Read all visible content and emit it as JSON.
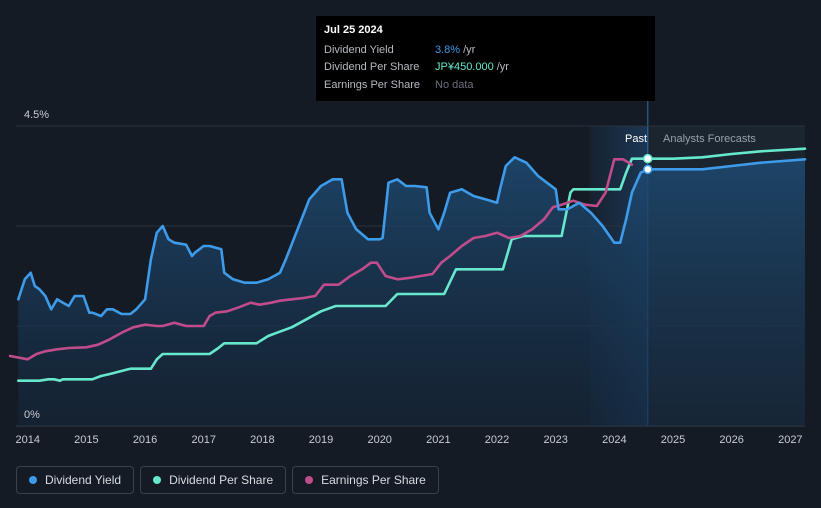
{
  "tooltip": {
    "date": "Jul 25 2024",
    "rows": [
      {
        "label": "Dividend Yield",
        "value": "3.8%",
        "unit": "/yr"
      },
      {
        "label": "Dividend Per Share",
        "value": "JP¥450.000",
        "unit": "/yr"
      },
      {
        "label": "Earnings Per Share",
        "value": "No data",
        "unit": ""
      }
    ]
  },
  "legend": [
    {
      "label": "Dividend Yield",
      "color": "#3d9be9"
    },
    {
      "label": "Dividend Per Share",
      "color": "#67e8cc"
    },
    {
      "label": "Earnings Per Share",
      "color": "#c04c8c"
    }
  ],
  "colors": {
    "background": "#151b24",
    "forecast_band": "#1b2530",
    "past_band": "#1c3a5a"
  },
  "chart_data": {
    "type": "line",
    "ylim": [
      0,
      4.5
    ],
    "y_ticks": [
      {
        "value": 4.5,
        "label": "4.5%"
      },
      {
        "value": 0,
        "label": "0%"
      }
    ],
    "x_ticks": [
      "2014",
      "2015",
      "2016",
      "2017",
      "2018",
      "2019",
      "2020",
      "2021",
      "2022",
      "2023",
      "2024",
      "2025",
      "2026",
      "2027"
    ],
    "xlim": [
      2013.8,
      2027.25
    ],
    "past_label": "Past",
    "forecast_label": "Analysts Forecasts",
    "current_date": 2024.57,
    "past_band_start": 2023.57,
    "series": [
      {
        "name": "Dividend Yield",
        "color": "#3d9be9",
        "x": [
          2013.84,
          2013.95,
          2014.05,
          2014.12,
          2014.2,
          2014.3,
          2014.4,
          2014.5,
          2014.6,
          2014.7,
          2014.8,
          2014.85,
          2014.95,
          2015.05,
          2015.1,
          2015.25,
          2015.35,
          2015.45,
          2015.6,
          2015.75,
          2015.85,
          2016.0,
          2016.1,
          2016.2,
          2016.3,
          2016.4,
          2016.5,
          2016.7,
          2016.8,
          2016.85,
          2017.0,
          2017.1,
          2017.3,
          2017.35,
          2017.5,
          2017.7,
          2017.9,
          2018.1,
          2018.3,
          2018.4,
          2018.6,
          2018.8,
          2019.0,
          2019.2,
          2019.35,
          2019.45,
          2019.6,
          2019.8,
          2020.0,
          2020.05,
          2020.15,
          2020.3,
          2020.45,
          2020.6,
          2020.8,
          2020.85,
          2021.0,
          2021.1,
          2021.2,
          2021.4,
          2021.6,
          2021.8,
          2022.0,
          2022.05,
          2022.15,
          2022.3,
          2022.5,
          2022.7,
          2022.85,
          2023.0,
          2023.05,
          2023.2,
          2023.4,
          2023.6,
          2023.8,
          2024.0,
          2024.1,
          2024.2,
          2024.3,
          2024.45,
          2024.57,
          2025.0,
          2025.5,
          2026.0,
          2026.5,
          2027.25
        ],
        "y": [
          1.9,
          2.2,
          2.3,
          2.1,
          2.05,
          1.95,
          1.75,
          1.9,
          1.85,
          1.8,
          1.95,
          1.95,
          1.95,
          1.7,
          1.7,
          1.65,
          1.75,
          1.75,
          1.68,
          1.68,
          1.75,
          1.9,
          2.5,
          2.9,
          3.0,
          2.8,
          2.75,
          2.72,
          2.55,
          2.6,
          2.7,
          2.7,
          2.65,
          2.3,
          2.2,
          2.15,
          2.15,
          2.2,
          2.3,
          2.5,
          2.95,
          3.4,
          3.6,
          3.7,
          3.7,
          3.2,
          2.95,
          2.8,
          2.8,
          2.82,
          3.65,
          3.7,
          3.6,
          3.6,
          3.58,
          3.2,
          2.95,
          3.2,
          3.5,
          3.55,
          3.45,
          3.4,
          3.35,
          3.55,
          3.9,
          4.03,
          3.95,
          3.75,
          3.65,
          3.55,
          3.25,
          3.25,
          3.35,
          3.2,
          3.0,
          2.75,
          2.75,
          3.1,
          3.5,
          3.8,
          3.85,
          3.85,
          3.85,
          3.9,
          3.95,
          4.0
        ]
      },
      {
        "name": "Dividend Per Share",
        "color": "#67e8cc",
        "x": [
          2013.84,
          2014.2,
          2014.35,
          2014.45,
          2014.55,
          2014.6,
          2014.75,
          2015.1,
          2015.25,
          2015.4,
          2015.75,
          2015.85,
          2016.1,
          2016.2,
          2016.3,
          2016.4,
          2017.1,
          2017.25,
          2017.35,
          2017.8,
          2017.9,
          2018.1,
          2018.25,
          2018.5,
          2018.75,
          2019.0,
          2019.25,
          2020.1,
          2020.3,
          2020.6,
          2021.1,
          2021.3,
          2022.1,
          2022.25,
          2022.45,
          2022.6,
          2023.1,
          2023.25,
          2023.3,
          2024.1,
          2024.2,
          2024.3,
          2024.57,
          2025.0,
          2025.5,
          2026.0,
          2026.5,
          2027.25
        ],
        "y": [
          0.68,
          0.68,
          0.7,
          0.7,
          0.68,
          0.7,
          0.7,
          0.7,
          0.75,
          0.78,
          0.86,
          0.86,
          0.86,
          1.0,
          1.08,
          1.08,
          1.08,
          1.17,
          1.24,
          1.24,
          1.24,
          1.35,
          1.4,
          1.48,
          1.6,
          1.72,
          1.8,
          1.8,
          1.98,
          1.98,
          1.98,
          2.35,
          2.35,
          2.8,
          2.85,
          2.85,
          2.85,
          3.5,
          3.55,
          3.55,
          3.8,
          4.01,
          4.01,
          4.01,
          4.03,
          4.08,
          4.12,
          4.16
        ]
      },
      {
        "name": "Earnings Per Share",
        "color": "#c04c8c",
        "x": [
          2013.7,
          2014.0,
          2014.15,
          2014.3,
          2014.5,
          2014.7,
          2015.0,
          2015.2,
          2015.4,
          2015.6,
          2015.8,
          2016.0,
          2016.2,
          2016.3,
          2016.5,
          2016.7,
          2016.85,
          2017.0,
          2017.1,
          2017.2,
          2017.4,
          2017.6,
          2017.8,
          2017.95,
          2018.15,
          2018.3,
          2018.5,
          2018.7,
          2018.9,
          2019.05,
          2019.15,
          2019.3,
          2019.5,
          2019.7,
          2019.85,
          2019.95,
          2020.1,
          2020.3,
          2020.5,
          2020.7,
          2020.9,
          2021.05,
          2021.2,
          2021.4,
          2021.6,
          2021.8,
          2022.0,
          2022.2,
          2022.4,
          2022.6,
          2022.8,
          2022.95,
          2023.1,
          2023.3,
          2023.5,
          2023.7,
          2023.85,
          2024.0,
          2024.15,
          2024.3
        ],
        "y": [
          1.05,
          1.0,
          1.08,
          1.12,
          1.15,
          1.17,
          1.18,
          1.22,
          1.3,
          1.4,
          1.48,
          1.52,
          1.5,
          1.5,
          1.55,
          1.5,
          1.5,
          1.5,
          1.65,
          1.7,
          1.72,
          1.78,
          1.85,
          1.82,
          1.85,
          1.88,
          1.9,
          1.92,
          1.95,
          2.12,
          2.12,
          2.12,
          2.25,
          2.35,
          2.45,
          2.45,
          2.25,
          2.2,
          2.22,
          2.25,
          2.28,
          2.45,
          2.55,
          2.7,
          2.82,
          2.85,
          2.9,
          2.82,
          2.85,
          2.95,
          3.1,
          3.28,
          3.32,
          3.38,
          3.32,
          3.3,
          3.5,
          4.0,
          4.0,
          3.92
        ]
      }
    ]
  }
}
